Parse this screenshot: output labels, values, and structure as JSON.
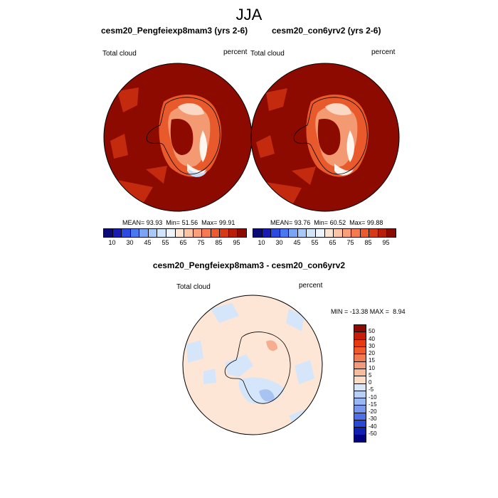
{
  "figure": {
    "title": "JJA"
  },
  "panels": [
    {
      "title": "cesm20_Pengfeiexp8mam3 (yrs 2-6)",
      "left_label": "Total cloud",
      "right_label": "percent",
      "mean": "93.93",
      "min": "51.56",
      "max": "99.91"
    },
    {
      "title": "cesm20_con6yrv2 (yrs 2-6)",
      "left_label": "Total cloud",
      "right_label": "percent",
      "mean": "93.76",
      "min": "60.52",
      "max": "99.88"
    }
  ],
  "diff_panel": {
    "title": "cesm20_Pengfeiexp8mam3 - cesm20_con6yrv2",
    "left_label": "Total cloud",
    "right_label": "percent",
    "min": "-13.38",
    "max": "8.94"
  },
  "colorbar_top": {
    "tick_labels": [
      "10",
      "30",
      "45",
      "55",
      "65",
      "75",
      "85",
      "95"
    ],
    "colors": [
      "#0a0a78",
      "#1a1ab4",
      "#2a4ae0",
      "#4a78f0",
      "#7aa4f4",
      "#a8c8f8",
      "#d2e4fa",
      "#eef4fc",
      "#fde4d0",
      "#fcc4a2",
      "#f9a07a",
      "#f57a52",
      "#ec5a30",
      "#d83a18",
      "#b81e0a",
      "#8c0a00"
    ]
  },
  "colorbar_diff": {
    "tick_labels": [
      "50",
      "40",
      "30",
      "20",
      "15",
      "10",
      "5",
      "0",
      "-5",
      "-10",
      "-15",
      "-20",
      "-30",
      "-40",
      "-50"
    ],
    "colors": [
      "#8c0a00",
      "#c81e08",
      "#e83a10",
      "#f05a2a",
      "#f27a50",
      "#f59a78",
      "#f8bc9c",
      "#fcdcc4",
      "#d8e6fa",
      "#b8d0f8",
      "#98b8f4",
      "#7898f0",
      "#5070e8",
      "#2848d8",
      "#1020b4",
      "#000080"
    ]
  },
  "map_colors": {
    "dark_red": "#8c0a00",
    "red": "#c32a0e",
    "orange": "#e85a2c",
    "light_orange": "#f49a72",
    "pale": "#fad8c4",
    "white": "#fff6f0",
    "pale_blue": "#c8dcf8",
    "blue": "#7ea2ec",
    "diff_bg": "#fde6d6",
    "diff_blue": "#d6e6fa",
    "diff_red": "#f5ae90"
  }
}
